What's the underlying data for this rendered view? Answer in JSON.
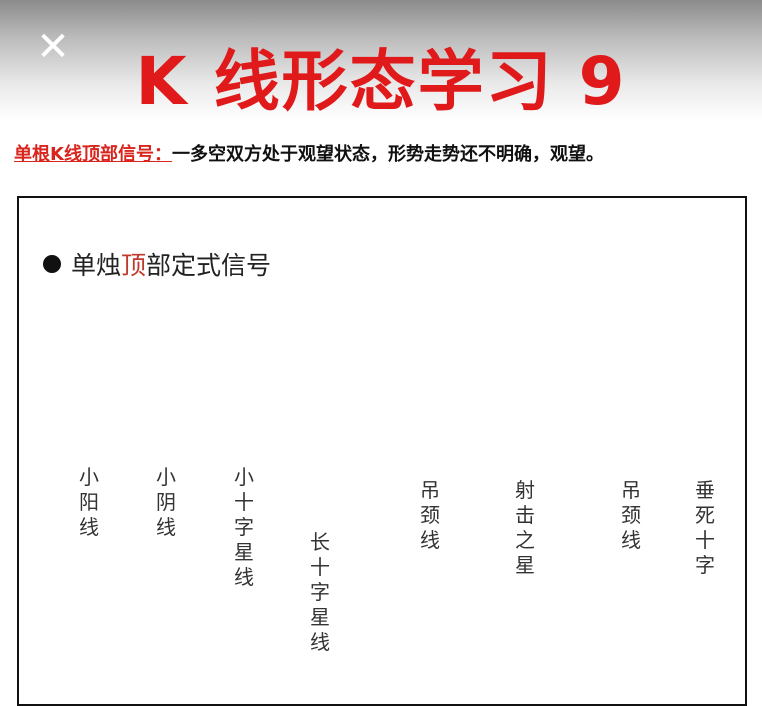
{
  "close_icon": "close-icon",
  "title": "K 线形态学习 9",
  "subtitle": {
    "label": "单根K线顶部信号：",
    "desc": "一多空双方处于观望状态，形势走势还不明确，观望。"
  },
  "panel": {
    "heading_prefix": "单烛",
    "heading_accent": "顶",
    "heading_suffix": "部定式信号",
    "accent_color": "#c0392b"
  },
  "patterns": [
    {
      "id": "p1",
      "name": "小阳线",
      "color": "#e50000"
    },
    {
      "id": "p2",
      "name": "小阴线",
      "color": "#000000"
    },
    {
      "id": "p3",
      "name": "小十字星线",
      "color": "#000000"
    },
    {
      "id": "p4",
      "name": "长十字星线",
      "color": "#000000"
    },
    {
      "id": "p5",
      "name": "吊颈线",
      "color": "#e50000"
    },
    {
      "id": "p6",
      "name": "射击之星",
      "color": "#e50000"
    },
    {
      "id": "p7",
      "name": "吊颈线",
      "color": "#000000"
    },
    {
      "id": "p8",
      "name": "垂死十字",
      "color": "#000000"
    }
  ]
}
